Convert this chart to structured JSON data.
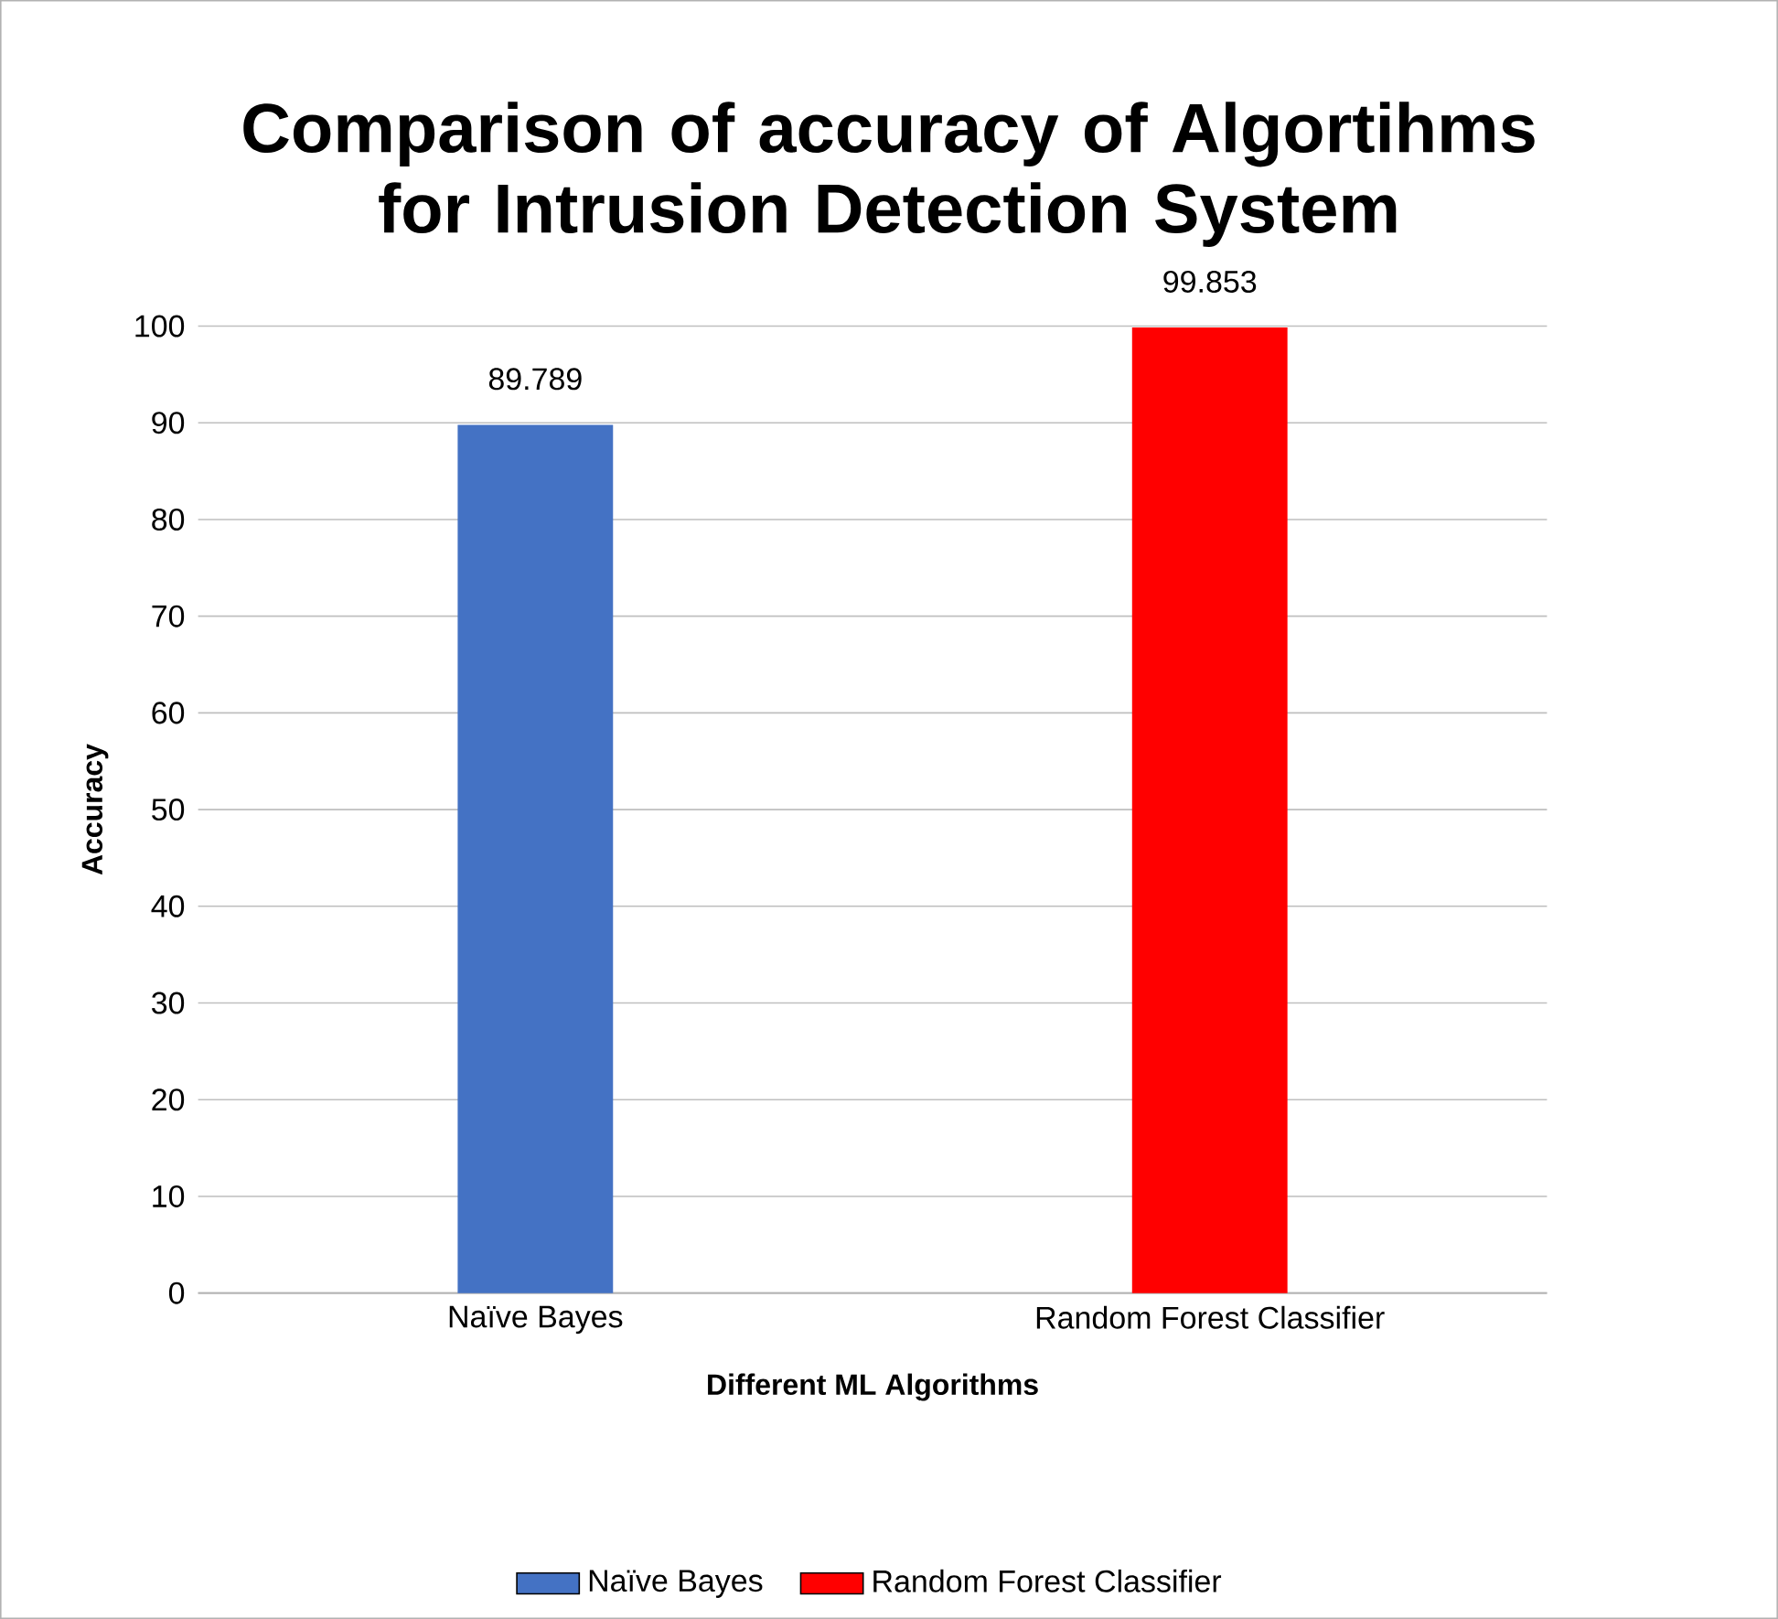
{
  "chart_data": {
    "type": "bar",
    "title": "Comparison of accuracy of Algortihms for Intrusion Detection System",
    "xlabel": "Different ML Algorithms",
    "ylabel": "Accuracy",
    "categories": [
      "Naïve Bayes",
      "Random Forest Classifier"
    ],
    "series": [
      {
        "name": "Naïve Bayes",
        "color": "#4472c4",
        "values": [
          89.789,
          null
        ]
      },
      {
        "name": "Random Forest Classifier",
        "color": "#ff0000",
        "values": [
          null,
          99.853
        ]
      }
    ],
    "ylim": [
      0,
      100
    ],
    "yticks": [
      0,
      10,
      20,
      30,
      40,
      50,
      60,
      70,
      80,
      90,
      100
    ],
    "grid": "y",
    "legend": "bottom",
    "data_labels": true
  }
}
